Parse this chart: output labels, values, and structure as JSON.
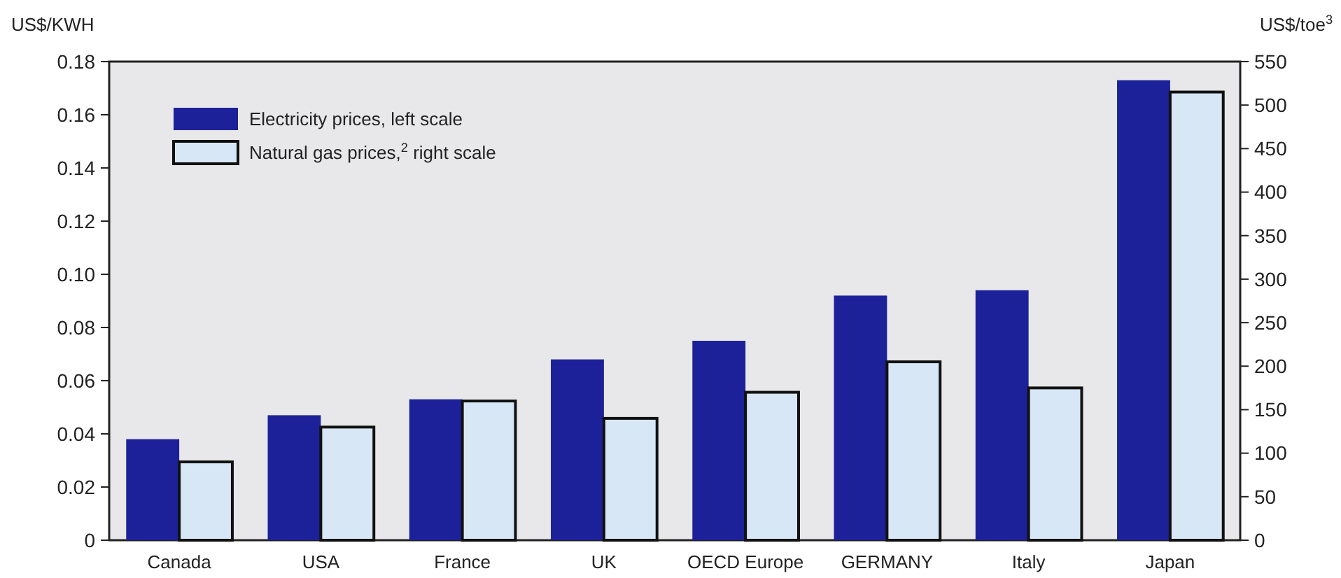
{
  "chart_data": {
    "type": "bar",
    "categories": [
      "Canada",
      "USA",
      "France",
      "UK",
      "OECD Europe",
      "GERMANY",
      "Italy",
      "Japan"
    ],
    "series": [
      {
        "name": "Electricity prices, left scale",
        "color": "#1c2199",
        "values": [
          0.038,
          0.047,
          0.053,
          0.068,
          0.075,
          0.092,
          0.094,
          0.173
        ]
      },
      {
        "name": "Natural gas prices,$^{2}$ right scale",
        "color": "#d8e7f6",
        "axis": "y2",
        "values": [
          90,
          130,
          160,
          140,
          170,
          205,
          175,
          515
        ]
      }
    ],
    "ylabel": "US$/KWH",
    "y2label": "US$/toe$^{3}$",
    "ylim": [
      0,
      0.18
    ],
    "yticks": [
      {
        "value": 0,
        "label": "0"
      },
      {
        "value": 0.02,
        "label": "0.02"
      },
      {
        "value": 0.04,
        "label": "0.04"
      },
      {
        "value": 0.06,
        "label": "0.06"
      },
      {
        "value": 0.08,
        "label": "0.08"
      },
      {
        "value": 0.1,
        "label": "0.10"
      },
      {
        "value": 0.12,
        "label": "0.12"
      },
      {
        "value": 0.14,
        "label": "0.14"
      },
      {
        "value": 0.16,
        "label": "0.16"
      },
      {
        "value": 0.18,
        "label": "0.18"
      }
    ],
    "y2lim": [
      0,
      550
    ],
    "y2ticks": [
      0,
      50,
      100,
      150,
      200,
      250,
      300,
      350,
      400,
      450,
      500,
      550
    ],
    "legend": "top left",
    "grid": false
  }
}
